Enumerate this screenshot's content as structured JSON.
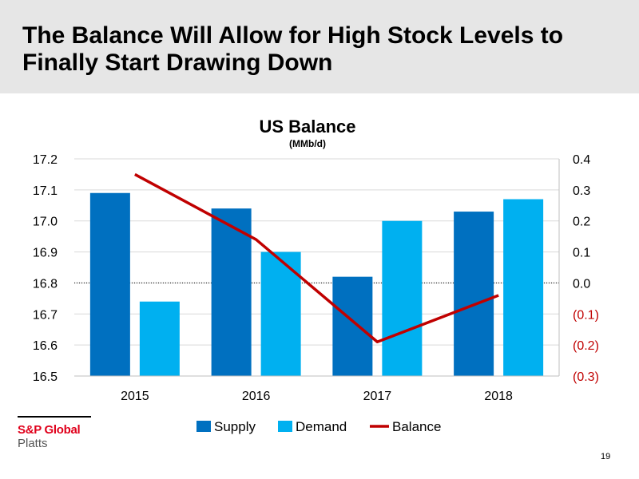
{
  "slide": {
    "title_line1": "The Balance Will Allow for High Stock Levels to",
    "title_line2": "Finally Start Drawing Down",
    "page_number": "19"
  },
  "logo": {
    "name": "S&P Global",
    "sub": "Platts"
  },
  "colors": {
    "supply": "#0070c0",
    "demand": "#00b0f0",
    "balance": "#c00000",
    "negative_tick": "#c00000",
    "header_bg": "#e6e6e6"
  },
  "chart_data": {
    "type": "bar",
    "title": "US Balance",
    "subtitle": "(MMb/d)",
    "categories": [
      "2015",
      "2016",
      "2017",
      "2018"
    ],
    "series": [
      {
        "name": "Supply",
        "type": "bar",
        "axis": "left",
        "values": [
          17.09,
          17.04,
          16.82,
          17.03
        ]
      },
      {
        "name": "Demand",
        "type": "bar",
        "axis": "left",
        "values": [
          16.74,
          16.9,
          17.0,
          17.07
        ]
      },
      {
        "name": "Balance",
        "type": "line",
        "axis": "right",
        "values": [
          0.35,
          0.14,
          -0.19,
          -0.04
        ]
      }
    ],
    "left_axis": {
      "ylim": [
        16.5,
        17.2
      ],
      "ticks": [
        "16.5",
        "16.6",
        "16.7",
        "16.8",
        "16.9",
        "17.0",
        "17.1",
        "17.2"
      ]
    },
    "right_axis": {
      "ylim": [
        -0.3,
        0.4
      ],
      "ticks": [
        "(0.3)",
        "(0.2)",
        "(0.1)",
        "0.0",
        "0.1",
        "0.2",
        "0.3",
        "0.4"
      ]
    },
    "grid": true,
    "legend_position": "bottom"
  }
}
